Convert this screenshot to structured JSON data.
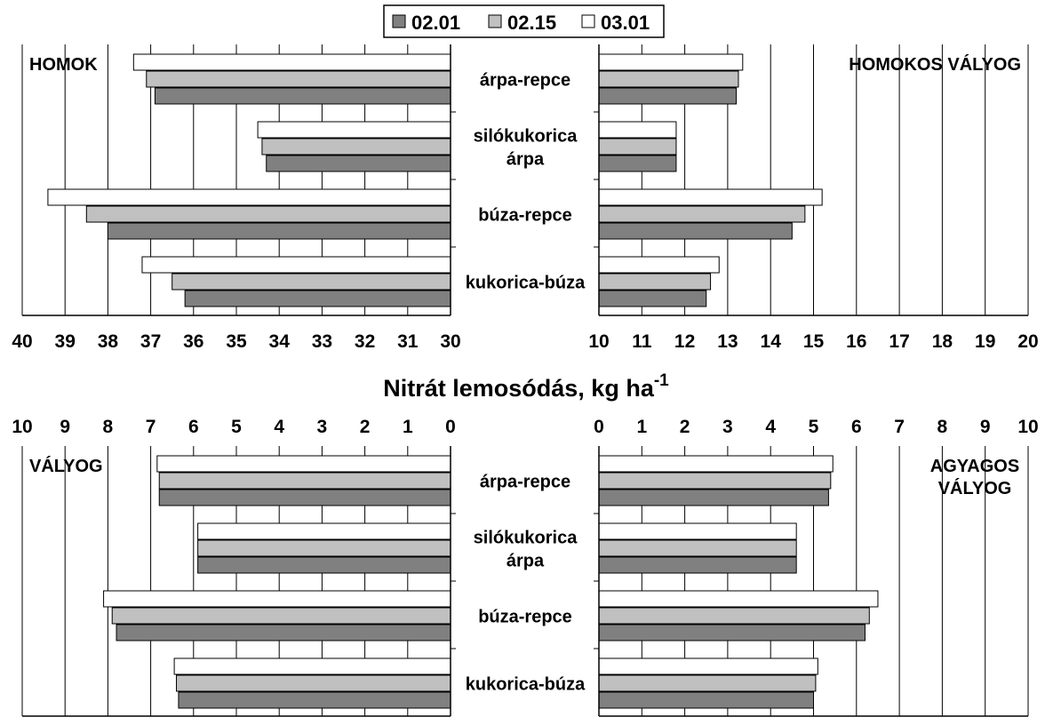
{
  "chart_data": {
    "type": "bar",
    "orientation": "horizontal",
    "categories": [
      [
        "árpa-repce"
      ],
      [
        "silókukorica",
        "árpa"
      ],
      [
        "búza-repce"
      ],
      [
        "kukorica-búza"
      ]
    ],
    "legend": {
      "placement": "top-center",
      "entries": [
        {
          "label": "02.01",
          "color": "#808080"
        },
        {
          "label": "02.15",
          "color": "#c0c0c0"
        },
        {
          "label": "03.01",
          "color": "#ffffff"
        }
      ]
    },
    "xlabel": {
      "main": "Nitrát lemosódás, kg ha",
      "sup": "-1"
    },
    "panels": [
      {
        "id": "homok",
        "title": [
          "HOMOK"
        ],
        "title_position": "top-left",
        "axis_direction": "reversed",
        "xlim": [
          30,
          40
        ],
        "ticks": [
          "30",
          "31",
          "32",
          "33",
          "34",
          "35",
          "36",
          "37",
          "38",
          "39",
          "40"
        ],
        "series": [
          {
            "name": "02.01",
            "values": [
              36.9,
              34.3,
              38.0,
              36.2
            ]
          },
          {
            "name": "02.15",
            "values": [
              37.1,
              34.4,
              38.5,
              36.5
            ]
          },
          {
            "name": "03.01",
            "values": [
              37.4,
              34.5,
              39.4,
              37.2
            ]
          }
        ]
      },
      {
        "id": "homokos-valyog",
        "title": [
          "HOMOKOS VÁLYOG"
        ],
        "title_position": "top-right",
        "axis_direction": "normal",
        "xlim": [
          10,
          20
        ],
        "ticks": [
          "10",
          "11",
          "12",
          "13",
          "14",
          "15",
          "16",
          "17",
          "18",
          "19",
          "20"
        ],
        "series": [
          {
            "name": "02.01",
            "values": [
              13.2,
              11.8,
              14.5,
              12.5
            ]
          },
          {
            "name": "02.15",
            "values": [
              13.25,
              11.8,
              14.8,
              12.6
            ]
          },
          {
            "name": "03.01",
            "values": [
              13.35,
              11.8,
              15.2,
              12.8
            ]
          }
        ]
      },
      {
        "id": "valyog",
        "title": [
          "VÁLYOG"
        ],
        "title_position": "top-left",
        "axis_direction": "reversed",
        "xlim": [
          0,
          10
        ],
        "ticks": [
          "0",
          "1",
          "2",
          "3",
          "4",
          "5",
          "6",
          "7",
          "8",
          "9",
          "10"
        ],
        "series": [
          {
            "name": "02.01",
            "values": [
              6.8,
              5.9,
              7.8,
              6.35
            ]
          },
          {
            "name": "02.15",
            "values": [
              6.8,
              5.9,
              7.9,
              6.4
            ]
          },
          {
            "name": "03.01",
            "values": [
              6.85,
              5.9,
              8.1,
              6.45
            ]
          }
        ]
      },
      {
        "id": "agyagos-valyog",
        "title": [
          "AGYAGOS",
          "VÁLYOG"
        ],
        "title_position": "top-right",
        "axis_direction": "normal",
        "xlim": [
          0,
          10
        ],
        "ticks": [
          "0",
          "1",
          "2",
          "3",
          "4",
          "5",
          "6",
          "7",
          "8",
          "9",
          "10"
        ],
        "series": [
          {
            "name": "02.01",
            "values": [
              5.35,
              4.6,
              6.2,
              5.0
            ]
          },
          {
            "name": "02.15",
            "values": [
              5.4,
              4.6,
              6.3,
              5.05
            ]
          },
          {
            "name": "03.01",
            "values": [
              5.45,
              4.6,
              6.5,
              5.1
            ]
          }
        ]
      }
    ]
  }
}
